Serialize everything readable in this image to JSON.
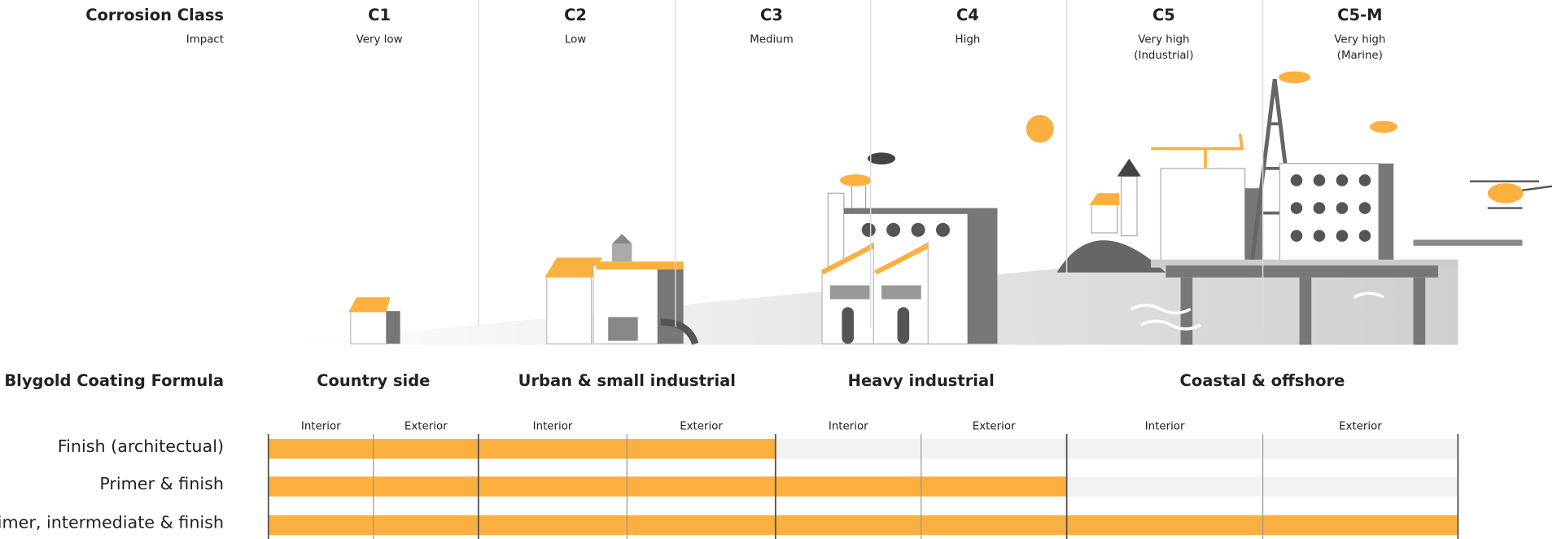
{
  "corrosion_class": {
    "title": "Corrosion Class",
    "subtitle": "Impact",
    "classes": [
      {
        "name": "C1",
        "impact": [
          "Very low"
        ]
      },
      {
        "name": "C2",
        "impact": [
          "Low"
        ]
      },
      {
        "name": "C3",
        "impact": [
          "Medium"
        ]
      },
      {
        "name": "C4",
        "impact": [
          "High"
        ]
      },
      {
        "name": "C5",
        "impact": [
          "Very high",
          "(Industrial)"
        ]
      },
      {
        "name": "C5-M",
        "impact": [
          "Very high",
          "(Marine)"
        ]
      }
    ]
  },
  "coating": {
    "title": "Blygold Coating Formula",
    "environments": [
      {
        "name": "Country side",
        "columns": [
          "Interior",
          "Exterior"
        ]
      },
      {
        "name": "Urban & small industrial",
        "columns": [
          "Interior",
          "Exterior"
        ]
      },
      {
        "name": "Heavy industrial",
        "columns": [
          "Interior",
          "Exterior"
        ]
      },
      {
        "name": "Coastal & offshore",
        "columns": [
          "Interior",
          "Exterior"
        ]
      }
    ],
    "rows": [
      "Finish (architectual)",
      "Primer & finish",
      "Primer, intermediate & finish"
    ]
  }
}
